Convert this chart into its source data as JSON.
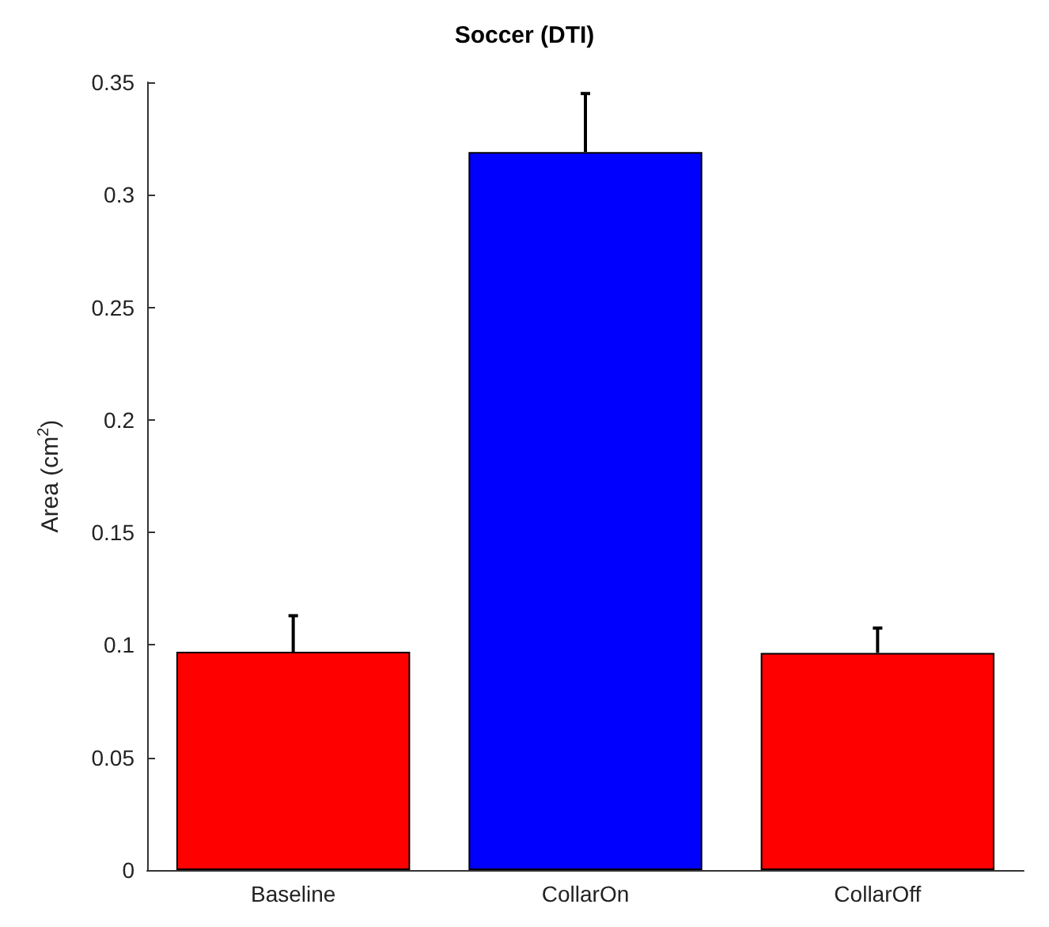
{
  "chart_data": {
    "type": "bar",
    "title": "Soccer (DTI)",
    "ylabel": "Area (cm$^{2}$)",
    "categories": [
      "Baseline",
      "CollarOn",
      "CollarOff"
    ],
    "values": [
      0.097,
      0.319,
      0.0965
    ],
    "colors": [
      "#ff0000",
      "#0000ff",
      "#ff0000"
    ],
    "errors": [
      [
        0.097,
        0.113
      ],
      [
        0.319,
        0.345
      ],
      [
        0.0965,
        0.1075
      ]
    ],
    "ylim": [
      0,
      0.35
    ],
    "yticks": [
      0,
      0.05,
      0.1,
      0.15,
      0.2,
      0.25,
      0.3,
      0.35
    ],
    "grid": false
  }
}
